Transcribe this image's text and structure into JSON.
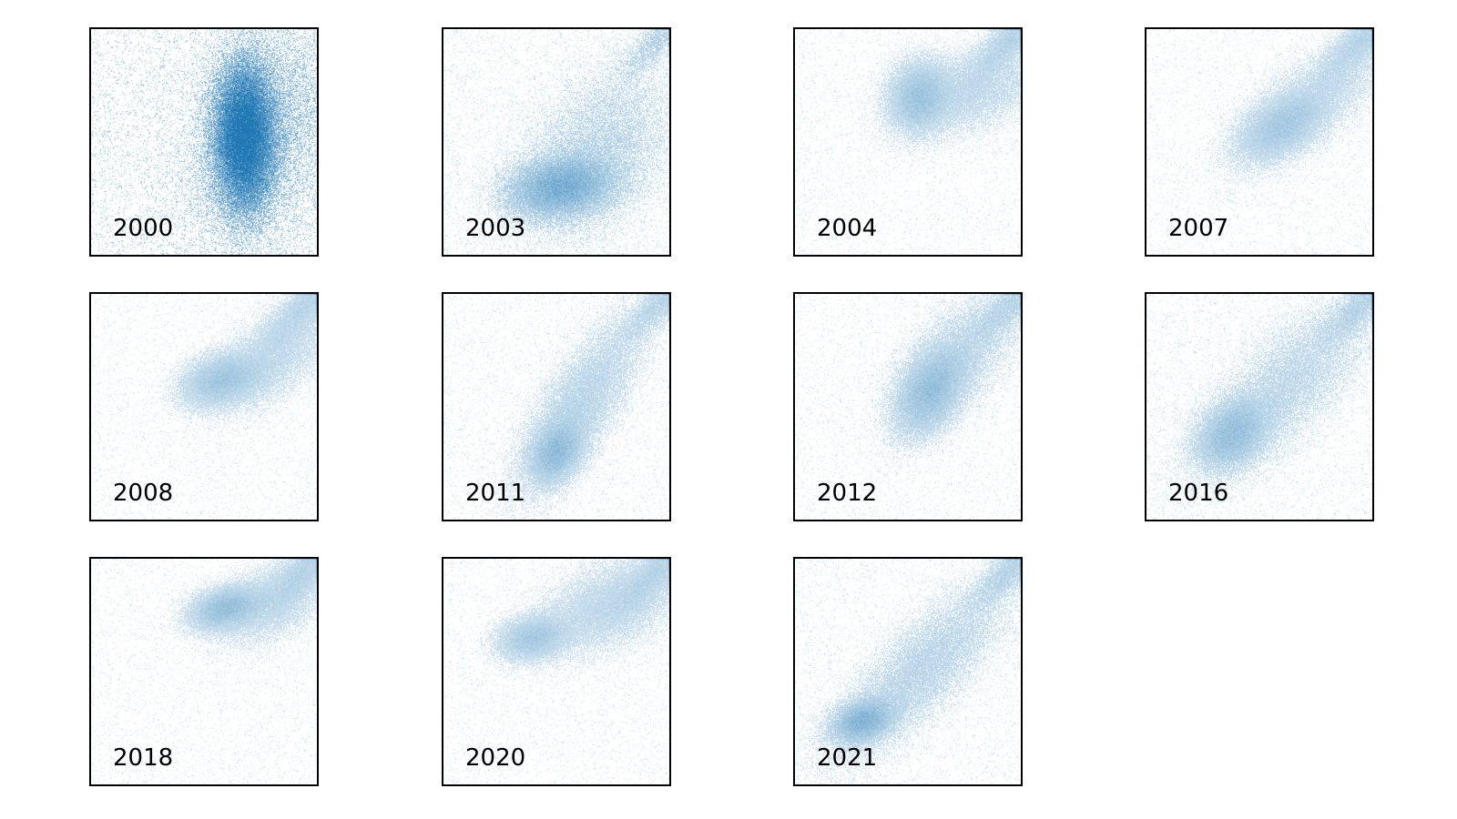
{
  "chart_data": {
    "type": "scatter",
    "layout": {
      "rows": 3,
      "cols": 4,
      "axes_visible": false,
      "grid": false,
      "label_placement": "bottom-left"
    },
    "point_color": "#1f77b4",
    "axis_range": {
      "x": [
        0,
        1
      ],
      "y": [
        0,
        1
      ]
    },
    "panels": [
      {
        "label": "2000",
        "clusters": [
          {
            "cx": 0.68,
            "cy": 0.52,
            "sx": 0.07,
            "sy": 0.17,
            "rho": 0.0,
            "w": 0.75
          },
          {
            "cx": 0.78,
            "cy": 0.55,
            "sx": 0.2,
            "sy": 0.28,
            "rho": 0.3,
            "w": 0.25
          }
        ],
        "diagonal": 0.0
      },
      {
        "label": "2003",
        "clusters": [
          {
            "cx": 0.52,
            "cy": 0.3,
            "sx": 0.12,
            "sy": 0.07,
            "rho": 0.2,
            "w": 0.65
          },
          {
            "cx": 0.68,
            "cy": 0.45,
            "sx": 0.18,
            "sy": 0.2,
            "rho": 0.4,
            "w": 0.35
          }
        ],
        "diagonal": 0.05
      },
      {
        "label": "2004",
        "clusters": [
          {
            "cx": 0.55,
            "cy": 0.7,
            "sx": 0.07,
            "sy": 0.08,
            "rho": 0.1,
            "w": 0.5
          },
          {
            "cx": 0.78,
            "cy": 0.73,
            "sx": 0.16,
            "sy": 0.1,
            "rho": 0.4,
            "w": 0.35
          }
        ],
        "diagonal": 0.15
      },
      {
        "label": "2007",
        "clusters": [
          {
            "cx": 0.6,
            "cy": 0.57,
            "sx": 0.1,
            "sy": 0.08,
            "rho": 0.5,
            "w": 0.5
          },
          {
            "cx": 0.75,
            "cy": 0.7,
            "sx": 0.18,
            "sy": 0.15,
            "rho": 0.75,
            "w": 0.35
          }
        ],
        "diagonal": 0.15
      },
      {
        "label": "2008",
        "clusters": [
          {
            "cx": 0.58,
            "cy": 0.62,
            "sx": 0.09,
            "sy": 0.06,
            "rho": 0.3,
            "w": 0.5
          },
          {
            "cx": 0.8,
            "cy": 0.72,
            "sx": 0.14,
            "sy": 0.12,
            "rho": 0.6,
            "w": 0.35
          }
        ],
        "diagonal": 0.15
      },
      {
        "label": "2011",
        "clusters": [
          {
            "cx": 0.5,
            "cy": 0.3,
            "sx": 0.06,
            "sy": 0.07,
            "rho": 0.3,
            "w": 0.4
          },
          {
            "cx": 0.6,
            "cy": 0.5,
            "sx": 0.14,
            "sy": 0.2,
            "rho": 0.75,
            "w": 0.5
          }
        ],
        "diagonal": 0.1
      },
      {
        "label": "2012",
        "clusters": [
          {
            "cx": 0.6,
            "cy": 0.57,
            "sx": 0.08,
            "sy": 0.1,
            "rho": 0.4,
            "w": 0.6
          },
          {
            "cx": 0.72,
            "cy": 0.72,
            "sx": 0.14,
            "sy": 0.15,
            "rho": 0.6,
            "w": 0.3
          }
        ],
        "diagonal": 0.1
      },
      {
        "label": "2016",
        "clusters": [
          {
            "cx": 0.38,
            "cy": 0.38,
            "sx": 0.08,
            "sy": 0.08,
            "rho": 0.3,
            "w": 0.45
          },
          {
            "cx": 0.6,
            "cy": 0.58,
            "sx": 0.2,
            "sy": 0.2,
            "rho": 0.75,
            "w": 0.45
          }
        ],
        "diagonal": 0.1
      },
      {
        "label": "2018",
        "clusters": [
          {
            "cx": 0.6,
            "cy": 0.78,
            "sx": 0.08,
            "sy": 0.05,
            "rho": 0.3,
            "w": 0.55
          },
          {
            "cx": 0.82,
            "cy": 0.82,
            "sx": 0.12,
            "sy": 0.1,
            "rho": 0.5,
            "w": 0.3
          }
        ],
        "diagonal": 0.15
      },
      {
        "label": "2020",
        "clusters": [
          {
            "cx": 0.4,
            "cy": 0.65,
            "sx": 0.08,
            "sy": 0.05,
            "rho": 0.2,
            "w": 0.35
          },
          {
            "cx": 0.75,
            "cy": 0.8,
            "sx": 0.17,
            "sy": 0.11,
            "rho": 0.5,
            "w": 0.5
          }
        ],
        "diagonal": 0.15
      },
      {
        "label": "2021",
        "clusters": [
          {
            "cx": 0.3,
            "cy": 0.28,
            "sx": 0.07,
            "sy": 0.05,
            "rho": 0.3,
            "w": 0.4
          },
          {
            "cx": 0.55,
            "cy": 0.5,
            "sx": 0.2,
            "sy": 0.2,
            "rho": 0.8,
            "w": 0.5
          }
        ],
        "diagonal": 0.1
      }
    ]
  }
}
